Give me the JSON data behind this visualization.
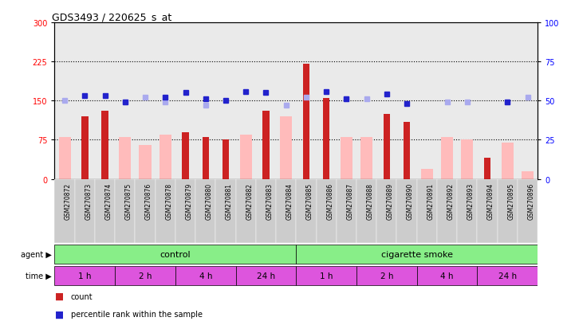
{
  "title": "GDS3493 / 220625_s_at",
  "samples": [
    "GSM270872",
    "GSM270873",
    "GSM270874",
    "GSM270875",
    "GSM270876",
    "GSM270878",
    "GSM270879",
    "GSM270880",
    "GSM270881",
    "GSM270882",
    "GSM270883",
    "GSM270884",
    "GSM270885",
    "GSM270886",
    "GSM270887",
    "GSM270888",
    "GSM270889",
    "GSM270890",
    "GSM270891",
    "GSM270892",
    "GSM270893",
    "GSM270894",
    "GSM270895",
    "GSM270896"
  ],
  "count_values": [
    null,
    120,
    130,
    null,
    null,
    null,
    90,
    80,
    75,
    null,
    130,
    null,
    220,
    155,
    null,
    null,
    125,
    110,
    null,
    null,
    null,
    40,
    null,
    null
  ],
  "absent_value_bars": [
    80,
    null,
    null,
    80,
    65,
    85,
    null,
    null,
    null,
    85,
    null,
    120,
    null,
    null,
    80,
    80,
    null,
    null,
    20,
    80,
    75,
    null,
    70,
    15
  ],
  "percentile_rank": [
    null,
    53,
    53,
    49,
    null,
    52,
    55,
    51,
    50,
    56,
    55,
    null,
    null,
    56,
    51,
    null,
    54,
    48,
    null,
    null,
    null,
    null,
    49,
    null
  ],
  "absent_rank": [
    50,
    null,
    null,
    49,
    52,
    49,
    null,
    47,
    null,
    null,
    null,
    47,
    52,
    null,
    51,
    51,
    null,
    null,
    null,
    49,
    49,
    null,
    49,
    52
  ],
  "ylim_left": [
    0,
    300
  ],
  "ylim_right": [
    0,
    100
  ],
  "yticks_left": [
    0,
    75,
    150,
    225,
    300
  ],
  "yticks_right": [
    0,
    25,
    50,
    75,
    100
  ],
  "hlines": [
    75,
    150,
    225
  ],
  "bar_color_count": "#cc2222",
  "bar_color_absent": "#ffbbbb",
  "dot_color_rank": "#2222cc",
  "dot_color_absent_rank": "#aaaaee",
  "agent_control_color": "#88ee88",
  "time_color": "#dd55dd",
  "background_color": "#ffffff"
}
